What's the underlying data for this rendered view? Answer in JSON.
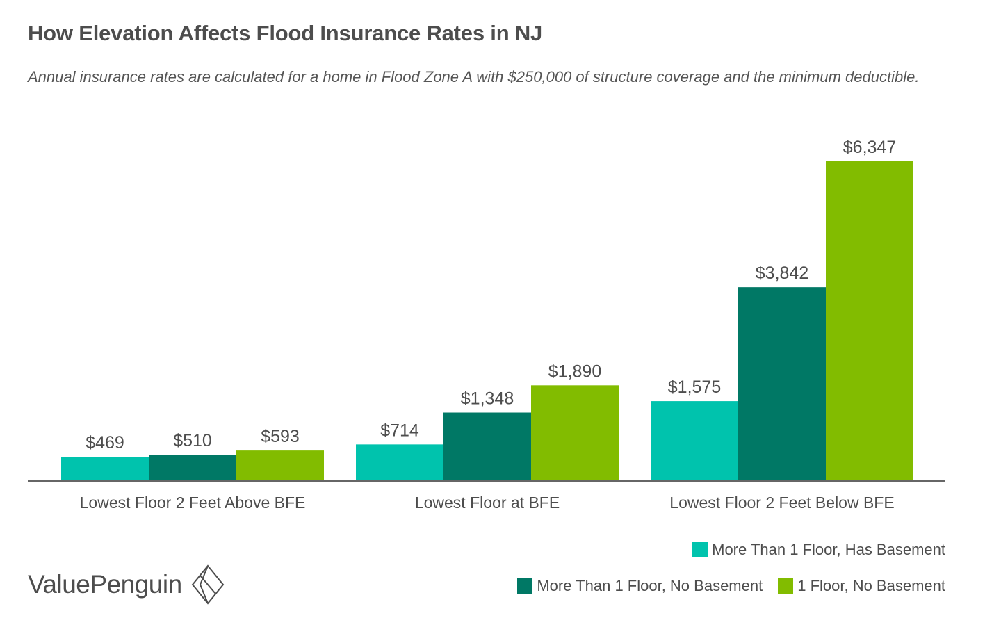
{
  "title": "How Elevation Affects Flood Insurance Rates in NJ",
  "subtitle": "Annual insurance rates are calculated for a home in Flood Zone A with $250,000 of structure coverage and the minimum deductible.",
  "brand": {
    "name": "ValuePenguin",
    "icon": "valuepenguin-diamond-logo"
  },
  "colors": {
    "series1": "#00c3ad",
    "series2": "#007865",
    "series3": "#82bc00",
    "axis": "#666666",
    "text": "#4d4d4d"
  },
  "chart_data": {
    "type": "bar",
    "title": "How Elevation Affects Flood Insurance Rates in NJ",
    "subtitle": "Annual insurance rates are calculated for a home in Flood Zone A with $250,000 of structure coverage and the minimum deductible.",
    "categories": [
      "Lowest Floor 2 Feet Above BFE",
      "Lowest Floor at BFE",
      "Lowest Floor 2 Feet Below BFE"
    ],
    "series": [
      {
        "name": "More Than 1 Floor, Has Basement",
        "values": [
          469,
          714,
          1575
        ],
        "labels": [
          "$469",
          "$714",
          "$1,575"
        ]
      },
      {
        "name": "More Than 1 Floor, No Basement",
        "values": [
          510,
          1348,
          3842
        ],
        "labels": [
          "$510",
          "$1,348",
          "$3,842"
        ]
      },
      {
        "name": "1 Floor, No Basement",
        "values": [
          593,
          1890,
          6347
        ],
        "labels": [
          "$593",
          "$1,890",
          "$6,347"
        ]
      }
    ],
    "ylim": [
      0,
      6347
    ],
    "grid": false,
    "legend": "bottom-right"
  }
}
